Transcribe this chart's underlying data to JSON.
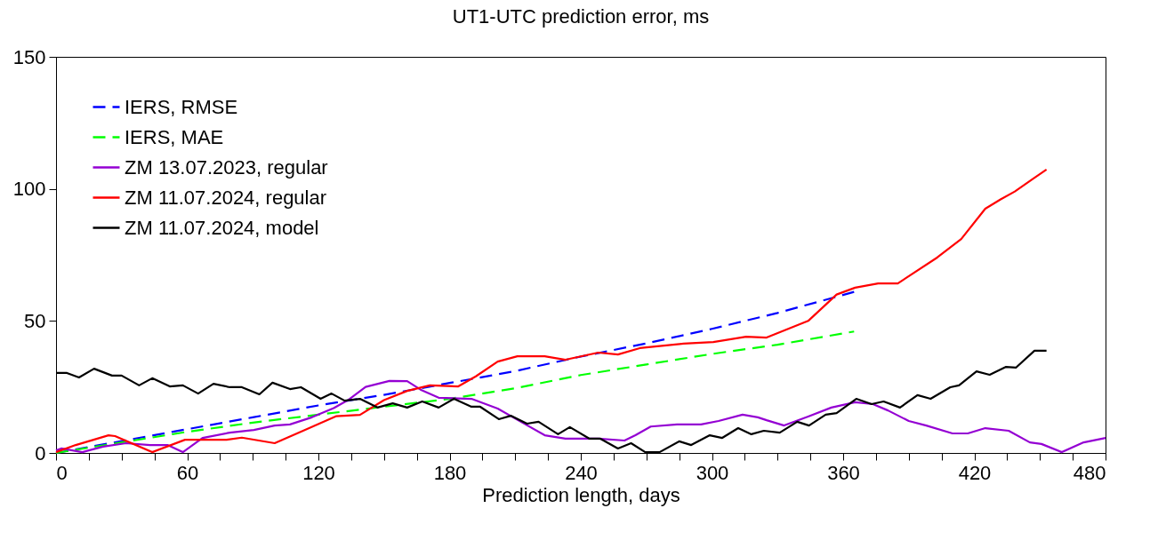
{
  "chart_data": {
    "type": "line",
    "title": "UT1-UTC prediction error, ms",
    "xlabel": "Prediction length, days",
    "xlim": [
      0,
      480
    ],
    "ylim": [
      0,
      150
    ],
    "xticks": [
      0,
      {
        "value": 15,
        "label": null
      },
      60,
      {
        "value": 30,
        "label": null
      },
      {
        "value": 45,
        "label": null
      },
      {
        "value": 75,
        "label": null
      },
      {
        "value": 90,
        "label": null
      },
      {
        "value": 105,
        "label": null
      },
      120,
      {
        "value": 135,
        "label": null
      },
      {
        "value": 150,
        "label": null
      },
      {
        "value": 165,
        "label": null
      },
      180,
      {
        "value": 195,
        "label": null
      },
      {
        "value": 210,
        "label": null
      },
      {
        "value": 225,
        "label": null
      },
      240,
      {
        "value": 255,
        "label": null
      },
      {
        "value": 270,
        "label": null
      },
      {
        "value": 285,
        "label": null
      },
      300,
      {
        "value": 315,
        "label": null
      },
      {
        "value": 330,
        "label": null
      },
      {
        "value": 345,
        "label": null
      },
      360,
      {
        "value": 375,
        "label": null
      },
      {
        "value": 390,
        "label": null
      },
      {
        "value": 405,
        "label": null
      },
      420,
      {
        "value": 435,
        "label": null
      },
      {
        "value": 450,
        "label": null
      },
      {
        "value": 465,
        "label": null
      },
      480
    ],
    "yticks": [
      0,
      50,
      100,
      150
    ],
    "grid": false,
    "legend": "top left",
    "marker": "none",
    "series": [
      {
        "name": "IERS, RMSE",
        "color": "#0000ff",
        "line_style": "dashed",
        "x": [
          0,
          30,
          60,
          90,
          120,
          150,
          180,
          210,
          240,
          270,
          300,
          330,
          365
        ],
        "values": [
          0,
          4.5,
          9,
          13.5,
          18,
          22,
          26.5,
          31,
          36.5,
          41.5,
          47,
          53,
          61
        ]
      },
      {
        "name": "IERS, MAE",
        "color": "#00ff00",
        "line_style": "dashed",
        "x": [
          0,
          30,
          60,
          90,
          120,
          150,
          180,
          210,
          240,
          270,
          300,
          330,
          365
        ],
        "values": [
          0,
          4,
          8,
          11.5,
          14.5,
          17.5,
          20.5,
          24.5,
          29.5,
          33.5,
          37.5,
          41,
          46
        ]
      },
      {
        "name": "ZM 13.07.2023, regular",
        "color": "#9400d3",
        "line_style": "solid",
        "x": [
          0,
          2.4,
          12,
          21.5,
          32,
          43,
          51,
          58,
          67,
          79.5,
          90.5,
          100,
          107,
          117,
          127,
          133.5,
          141.6,
          152.5,
          160.6,
          166.7,
          175,
          190,
          202,
          212.6,
          223.5,
          233,
          248,
          260,
          265,
          272,
          284,
          295,
          303,
          314,
          321,
          325,
          333,
          344,
          354.6,
          365.5,
          373.6,
          380.5,
          390,
          398,
          410,
          417,
          425,
          435.7,
          445.4,
          450.7,
          460,
          470,
          480
        ],
        "values": [
          1,
          1.7,
          0.3,
          2.4,
          3.7,
          3,
          3,
          0.3,
          5.7,
          7.7,
          8.7,
          10.4,
          10.8,
          13.5,
          17,
          20,
          25,
          27.3,
          27.2,
          24,
          20.9,
          20.5,
          16.8,
          11.8,
          6.7,
          5.4,
          5.4,
          4.7,
          6.7,
          10,
          10.8,
          10.8,
          12.1,
          14.5,
          13.5,
          12.4,
          10.4,
          13.8,
          17.2,
          19.2,
          18.5,
          16.1,
          12.1,
          10.4,
          7.4,
          7.4,
          9.4,
          8.4,
          4,
          3.4,
          0.3,
          4,
          5.7
        ]
      },
      {
        "name": "ZM 11.07.2024, regular",
        "color": "#ff0000",
        "line_style": "solid",
        "x": [
          0,
          9,
          24,
          27,
          44,
          59,
          78,
          85,
          100,
          113,
          128,
          139,
          150,
          160.6,
          171,
          184,
          192,
          202,
          211,
          223.5,
          233,
          248,
          257,
          267,
          287,
          300.6,
          315.6,
          325,
          344,
          357,
          365.5,
          376,
          385,
          403,
          414,
          425,
          432,
          438.5,
          446.5,
          453
        ],
        "values": [
          0.3,
          3,
          6.7,
          6.4,
          0.3,
          5,
          5,
          5.8,
          3.7,
          8.4,
          13.9,
          14.4,
          20,
          23.5,
          25.6,
          25.2,
          29,
          34.6,
          36.6,
          36.6,
          35.3,
          38,
          37.3,
          39.7,
          41.4,
          42,
          44,
          43.7,
          50,
          60,
          62.6,
          64.2,
          64.2,
          74,
          81,
          92.5,
          96,
          99,
          103.6,
          107.3
        ]
      },
      {
        "name": "ZM 11.07.2024, model",
        "color": "#000000",
        "line_style": "solid",
        "x": [
          0,
          5,
          10.5,
          17.4,
          25.6,
          30,
          38,
          44,
          52,
          58,
          65,
          72,
          79.5,
          85,
          93,
          99,
          107,
          112,
          121,
          126,
          132,
          139,
          147,
          154,
          160.6,
          167.5,
          175,
          182,
          190,
          194,
          202.5,
          208,
          215.4,
          220.7,
          229.6,
          235,
          244,
          249,
          257,
          263,
          269.5,
          276,
          285,
          290.5,
          299,
          304.7,
          312,
          318,
          323.7,
          331,
          339,
          344.4,
          352,
          357,
          366,
          373,
          378.5,
          386,
          394,
          400,
          409,
          413,
          421,
          427,
          434.5,
          439,
          447.5,
          453
        ],
        "values": [
          30.3,
          30.3,
          28.6,
          31.9,
          29.3,
          29.3,
          25.6,
          28.3,
          25.2,
          25.6,
          22.5,
          26.2,
          24.9,
          24.9,
          22.2,
          26.6,
          24.2,
          24.9,
          20.5,
          22.5,
          19.8,
          20.5,
          17.2,
          18.8,
          17.2,
          19.5,
          17.2,
          20.5,
          17.5,
          17.5,
          12.8,
          14.1,
          11.1,
          11.8,
          7.1,
          9.8,
          5.4,
          5.4,
          1.7,
          3.7,
          0.3,
          0.3,
          4.4,
          3,
          6.7,
          5.7,
          9.4,
          7.1,
          8.4,
          7.7,
          11.8,
          10.4,
          14.5,
          15.1,
          20.5,
          18.5,
          19.5,
          17.2,
          21.9,
          20.5,
          24.9,
          25.6,
          30.9,
          29.6,
          32.6,
          32.3,
          38.7,
          38.7
        ]
      }
    ]
  }
}
